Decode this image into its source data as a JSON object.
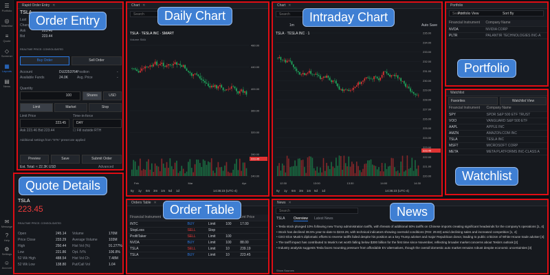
{
  "sidebar": [
    {
      "icon": "☰",
      "label": "Portfolio"
    },
    {
      "icon": "◎",
      "label": "Watchlist"
    },
    {
      "icon": "≡",
      "label": "Quote"
    },
    {
      "icon": "◇",
      "label": "Screener"
    },
    {
      "icon": "▦",
      "label": "Layouts"
    },
    {
      "icon": "▤",
      "label": "News"
    },
    {
      "icon": "✉",
      "label": "Message"
    },
    {
      "icon": "?",
      "label": "Help"
    },
    {
      "icon": "⚙",
      "label": "Settings"
    },
    {
      "icon": "☺",
      "label": "Account"
    }
  ],
  "overlays": {
    "order_entry": "Order Entry",
    "daily_chart": "Daily Chart",
    "intraday_chart": "Intraday Chart",
    "portfolio": "Portfolio",
    "quote_details": "Quote Details",
    "order_table": "Order Table",
    "news": "News",
    "watchlist": "Watchlist"
  },
  "order_entry": {
    "title": "Rapid Order Entry",
    "symbol": "TSLA",
    "stats": [
      {
        "label": "Last",
        "value": "223.45"
      },
      {
        "label": "Change",
        "value": "-"
      },
      {
        "label": "Ask",
        "value": "223.46"
      },
      {
        "label": "Bid",
        "value": "223.44"
      }
    ],
    "realtime": "REALTIME PRICE: CONSOLIDATED",
    "buy": "Buy Order",
    "sell": "Sell Order",
    "account_label": "Account",
    "account_value": "DU2253764",
    "position_label": "Position",
    "position_value": "-",
    "funds_label": "Available Funds",
    "funds_value": "24.0K",
    "avg_label": "Avg. Price",
    "avg_value": "-",
    "qty_label": "Quantity",
    "qty_value": "100",
    "shares": "Shares",
    "usd": "USD",
    "types": [
      "Limit",
      "Market",
      "Stop"
    ],
    "limit_label": "Limit Price",
    "tif_label": "Time-in-force",
    "limit_value": "223.45",
    "tif_value": "DAY",
    "ask_text": "Ask 223.46",
    "bid_text": "Bid 223.44",
    "fill_text": "Fill outside RTH",
    "additional": "Additional settings from \"STK\" preset are applied",
    "preview": "Preview",
    "save": "Save",
    "submit": "Submit Order",
    "est": "Est. Total: ≈ 22.3K USD",
    "advanced": "Advanced"
  },
  "daily": {
    "title": "Chart",
    "search": "Search",
    "symbol": "TSLA · TESLA INC · SMART",
    "volume": "Volume SMA",
    "price_ticks": [
      "480.00",
      "440.00",
      "400.00",
      "360.00",
      "320.00",
      "280.00",
      "240.00"
    ],
    "months": [
      "Feb",
      "Mar",
      "Apr"
    ],
    "tfs": [
      "5y",
      "1y",
      "6m",
      "3m",
      "1m",
      "5d",
      "1d"
    ],
    "time": "14:36:23 (UTC-4)",
    "last": "223.45"
  },
  "intraday": {
    "title": "Chart",
    "search": "Search",
    "tf": "1m",
    "autosave": "Auto Save",
    "symbol": "TSLA · TESLA INC · 1",
    "price_ticks": [
      "235.00",
      "234.00",
      "233.00",
      "232.00",
      "231.00",
      "230.00",
      "229.00",
      "228.00",
      "227.00",
      "226.00",
      "225.00",
      "224.00",
      "223.00",
      "222.00",
      "221.00",
      "220.00"
    ],
    "time_ticks": [
      "12:30",
      "13:00",
      "13:30",
      "14:00",
      "14:30"
    ],
    "tfs": [
      "5y",
      "1y",
      "6m",
      "3m",
      "1m",
      "5d",
      "1d"
    ],
    "time": "14:36:23 (UTC-4)",
    "last": "223.45"
  },
  "portfolio": {
    "title": "Portfolio",
    "search": "Search",
    "view": "Portfolio View",
    "sort": "Sort By",
    "cols": [
      "Financial Instrument",
      "Company Name"
    ],
    "rows": [
      [
        "NVDA",
        "NVIDIA CORP"
      ],
      [
        "PLTR",
        "PALANTIR TECHNOLOGIES INC-A"
      ]
    ]
  },
  "watchlist": {
    "title": "Watchlist",
    "fav": "Favorites",
    "view": "Watchlist View",
    "cols": [
      "Financial Instrument",
      "Company Name"
    ],
    "rows": [
      [
        "SPY",
        "SPDR S&P 500 ETF TRUST"
      ],
      [
        "VOO",
        "VANGUARD S&P 500 ETF"
      ],
      [
        "AAPL",
        "APPLE INC"
      ],
      [
        "AMZN",
        "AMAZON.COM INC"
      ],
      [
        "TSLA",
        "TESLA INC"
      ],
      [
        "MSFT",
        "MICROSOFT CORP"
      ],
      [
        "META",
        "META PLATFORMS INC-CLASS A"
      ]
    ]
  },
  "quote": {
    "symbol": "TSLA",
    "price": "223.45",
    "realtime": "REALTIME PRICE: CONSOLIDATED",
    "left": [
      [
        "Open",
        "245.14"
      ],
      [
        "Price Close",
        "233.29"
      ],
      [
        "High",
        "250.44"
      ],
      [
        "Low",
        "221.86"
      ],
      [
        "52 Wk High",
        "488.54"
      ],
      [
        "52 Wk Low",
        "138.80"
      ]
    ],
    "right": [
      [
        "Volume",
        "170M"
      ],
      [
        "Average Volume",
        "103M"
      ],
      [
        "Hist Vol (%)",
        "91.277%"
      ],
      [
        "Opt. IV%",
        "106.8%"
      ],
      [
        "Hist Vol Ch",
        "7.48M"
      ],
      [
        "Put/Call Vol",
        "1.04"
      ]
    ]
  },
  "orders": {
    "title": "Orders Table",
    "search": "Search",
    "cols": [
      "Financial Instrument",
      "Action",
      "Type",
      "Qty",
      "Lmt Price"
    ],
    "rows": [
      [
        "INTC",
        "BUY",
        "Limit",
        "100",
        "17.00"
      ],
      [
        "StopLoss",
        "SELL",
        "Stop",
        "",
        ""
      ],
      [
        "ProfitTaker",
        "SELL",
        "Limit",
        "100",
        ""
      ],
      [
        "NVDA",
        "BUY",
        "Limit",
        "100",
        "88.00"
      ],
      [
        "TSLA",
        "SELL",
        "Limit",
        "10",
        "239.19"
      ],
      [
        "TSLA",
        "BUY",
        "Limit",
        "10",
        "223.45"
      ]
    ]
  },
  "news": {
    "title": "News",
    "search": "Search",
    "symbol": "TSLA",
    "tab1": "Overview",
    "tab2": "Latest News",
    "items": [
      "Tesla stock plunged 10% following new Trump administration tariffs, with threats of additional 50% tariffs on Chinese imports creating significant headwinds for the company's operations [1, 4]",
      "Stock has declined 38.5% year-to-date to $233.29, with technical indicators showing oversold conditions (RSI: 29.83) amid declining sales and increased competition [1, 4]",
      "CEO Elon Musk's diplomatic efforts to reverse tariffs failed despite his position as a key Trump adviser and major Republican donor, leading to public criticism of White House trade adviser [4]",
      "The tariff impact has contributed to Musk's net worth falling below $300 billion for the first time since November, reflecting broader market concerns about Tesla's outlook [2]",
      "Industry analysis suggests Tesla faces mounting pressure from affordable EV alternatives, though the overall domestic auto market remains robust despite economic uncertainties [3]"
    ],
    "show_sources": "Show Sources"
  }
}
